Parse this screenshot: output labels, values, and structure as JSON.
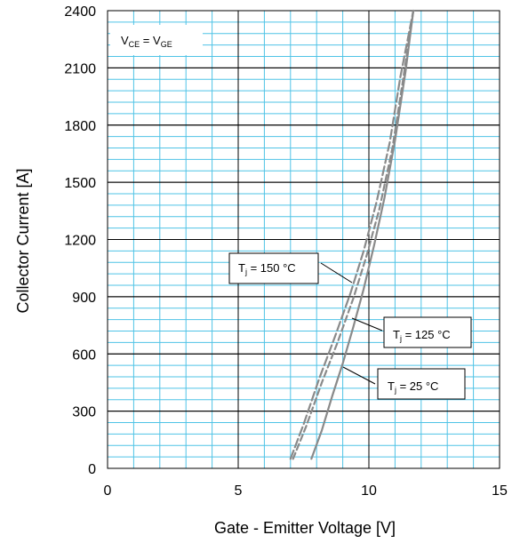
{
  "chart_data": {
    "type": "line",
    "xlabel": "Gate - Emitter Voltage [V]",
    "ylabel": "Collector Current [A]",
    "xlim": [
      0,
      15
    ],
    "ylim": [
      0,
      2400
    ],
    "xticks": [
      "0",
      "5",
      "10",
      "15"
    ],
    "yticks": [
      "0",
      "300",
      "600",
      "900",
      "1200",
      "1500",
      "1800",
      "2100",
      "2400"
    ],
    "grid": true,
    "condition": {
      "prefix": "V",
      "sub1": "CE",
      "mid": " = V",
      "sub2": "GE"
    },
    "series": [
      {
        "name": "Tj = 25 °C",
        "label_prefix": "T",
        "label_sub": "j",
        "label_rest": " = 25 °C",
        "style": "solid",
        "x": [
          7.8,
          8.2,
          8.6,
          9.0,
          9.4,
          9.8,
          10.2,
          10.6,
          11.0,
          11.4,
          11.7
        ],
        "y": [
          50,
          200,
          380,
          550,
          740,
          940,
          1170,
          1420,
          1720,
          2080,
          2400
        ]
      },
      {
        "name": "Tj = 125 °C",
        "label_prefix": "T",
        "label_sub": "j",
        "label_rest": " = 125 °C",
        "style": "dashed",
        "x": [
          7.1,
          7.6,
          8.2,
          8.8,
          9.4,
          9.9,
          10.4,
          10.9,
          11.3,
          11.7
        ],
        "y": [
          50,
          220,
          450,
          660,
          890,
          1110,
          1360,
          1680,
          2030,
          2400
        ]
      },
      {
        "name": "Tj = 150 °C",
        "label_prefix": "T",
        "label_sub": "j",
        "label_rest": " = 150 °C",
        "style": "dashed",
        "x": [
          7.0,
          7.5,
          8.1,
          8.7,
          9.3,
          9.8,
          10.3,
          10.8,
          11.2,
          11.7
        ],
        "y": [
          50,
          230,
          470,
          690,
          920,
          1140,
          1400,
          1710,
          2050,
          2400
        ]
      }
    ],
    "colors": {
      "grid": "#4fc3e6",
      "curve": "#8a8a8a",
      "frame": "#000000"
    }
  }
}
